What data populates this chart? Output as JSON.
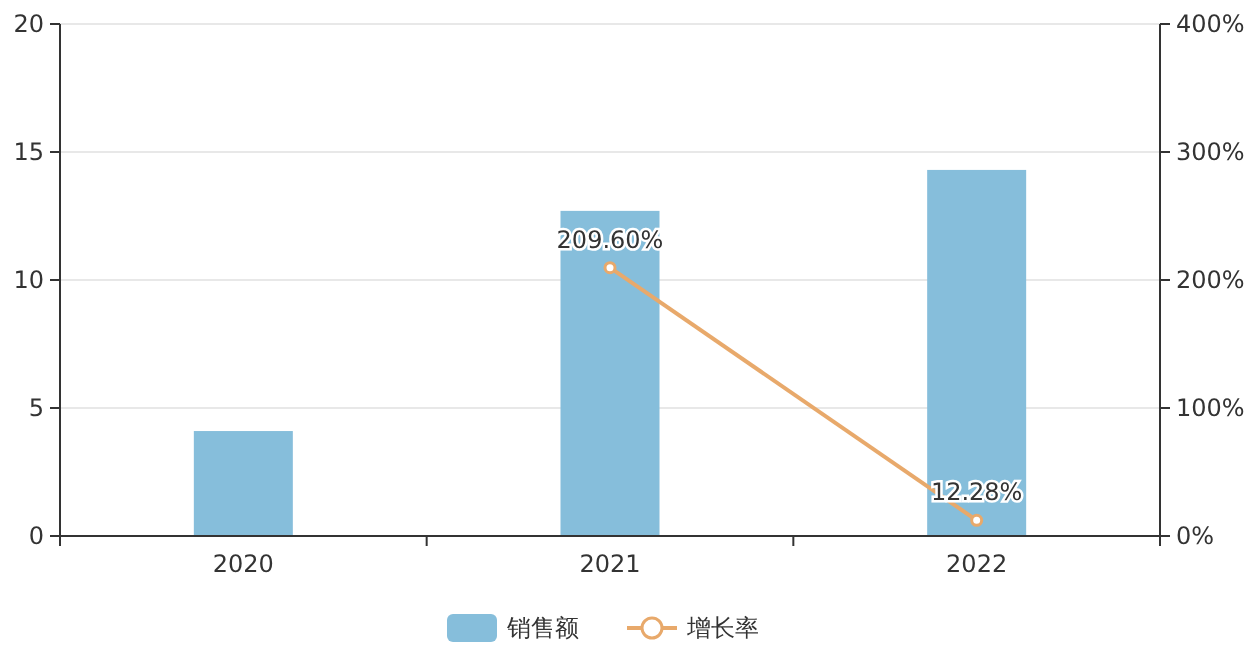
{
  "chart_data": {
    "type": "bar",
    "categories": [
      "2020",
      "2021",
      "2022"
    ],
    "series": [
      {
        "name": "销售额",
        "color": "#86bedb",
        "values": [
          4.1,
          12.7,
          14.3
        ]
      },
      {
        "name": "增长率",
        "type": "line",
        "axis": "y2",
        "color": "#e8a96b",
        "marker": "circle",
        "values": [
          null,
          209.6,
          12.28
        ],
        "value_labels": [
          null,
          "209.60%",
          "12.28%"
        ]
      }
    ],
    "ylim": [
      0,
      20
    ],
    "yticks": [
      0,
      5,
      10,
      15,
      20
    ],
    "y2lim": [
      0,
      400
    ],
    "y2ticks": [
      {
        "value": 0,
        "label": "0%"
      },
      {
        "value": 100,
        "label": "100%"
      },
      {
        "value": 200,
        "label": "200%"
      },
      {
        "value": 300,
        "label": "300%"
      },
      {
        "value": 400,
        "label": "400%"
      }
    ],
    "grid": "y",
    "legend": "bottom"
  }
}
